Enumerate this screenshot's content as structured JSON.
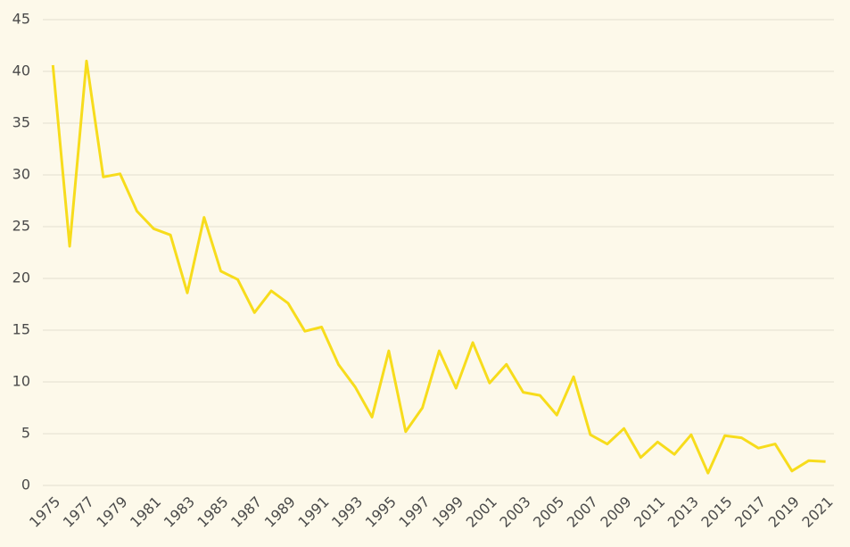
{
  "chart_data": {
    "type": "line",
    "x": [
      1975,
      1976,
      1977,
      1978,
      1979,
      1980,
      1981,
      1982,
      1983,
      1984,
      1985,
      1986,
      1987,
      1988,
      1989,
      1990,
      1991,
      1992,
      1993,
      1994,
      1995,
      1996,
      1997,
      1998,
      1999,
      2000,
      2001,
      2002,
      2003,
      2004,
      2005,
      2006,
      2007,
      2008,
      2009,
      2010,
      2011,
      2012,
      2013,
      2014,
      2015,
      2016,
      2017,
      2018,
      2019,
      2020,
      2021
    ],
    "series": [
      {
        "color": "#f7dc1c",
        "values": [
          40.6,
          23.1,
          41.0,
          29.8,
          30.1,
          26.5,
          24.8,
          24.2,
          18.6,
          25.9,
          20.7,
          19.9,
          16.7,
          18.8,
          17.6,
          14.9,
          15.3,
          11.7,
          9.5,
          6.6,
          13.0,
          5.2,
          7.5,
          13.0,
          9.4,
          13.8,
          9.9,
          11.7,
          9.0,
          8.7,
          6.8,
          10.5,
          4.9,
          4.0,
          5.5,
          2.7,
          4.2,
          3.0,
          4.9,
          1.2,
          4.8,
          4.6,
          3.6,
          4.0,
          1.4,
          2.4,
          2.3
        ]
      }
    ],
    "xlim": [
      1974.4,
      2021.5
    ],
    "xticks": [
      1975,
      1977,
      1979,
      1981,
      1983,
      1985,
      1987,
      1989,
      1991,
      1993,
      1995,
      1997,
      1999,
      2001,
      2003,
      2005,
      2007,
      2009,
      2011,
      2013,
      2015,
      2017,
      2019,
      2021
    ],
    "ylim": [
      0,
      45
    ],
    "yticks": [
      0,
      5,
      10,
      15,
      20,
      25,
      30,
      35,
      40,
      45
    ],
    "grid": true
  }
}
